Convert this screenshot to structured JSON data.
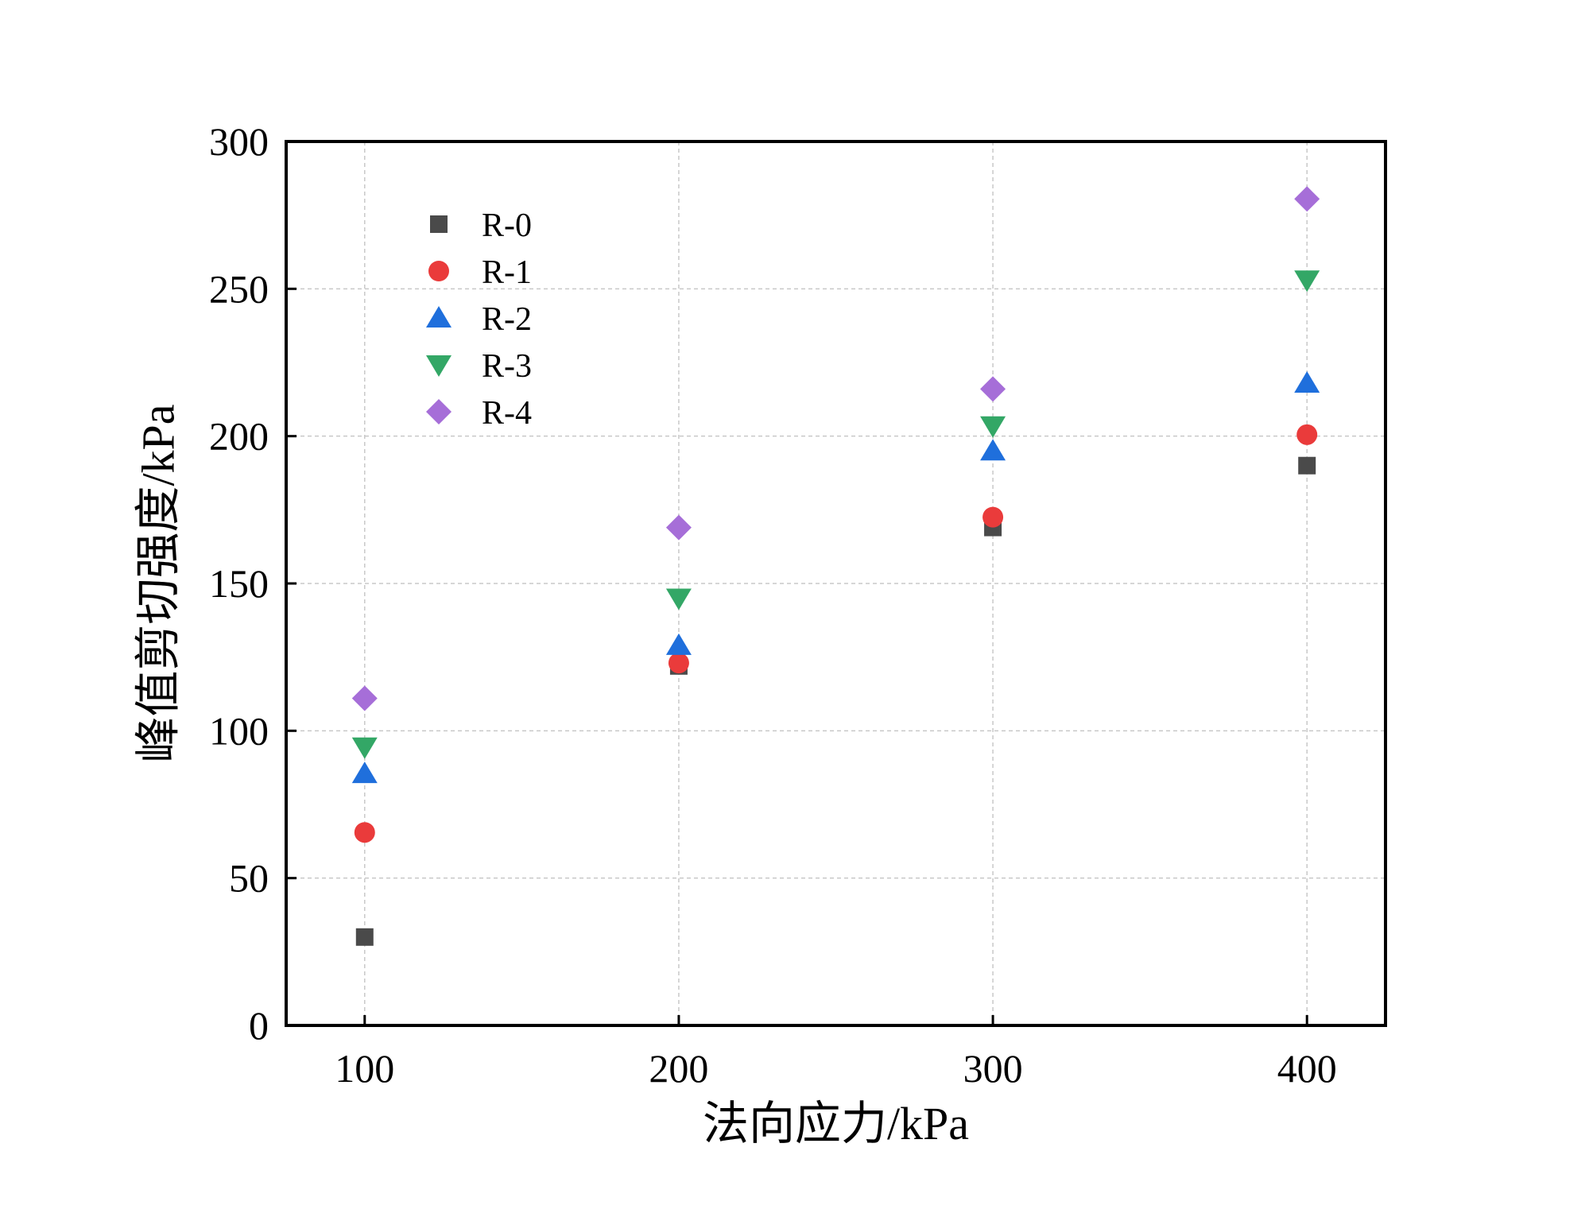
{
  "chart_data": {
    "type": "scatter",
    "title": "",
    "xlabel": "法向应力/kPa",
    "ylabel": "峰值剪切强度/kPa",
    "xlim": [
      75,
      425
    ],
    "ylim": [
      0,
      300
    ],
    "xticks": [
      100,
      200,
      300,
      400
    ],
    "yticks": [
      0,
      50,
      100,
      150,
      200,
      250,
      300
    ],
    "grid": true,
    "legend_position": "top-left",
    "x": [
      100,
      200,
      300,
      400
    ],
    "series": [
      {
        "name": "R-0",
        "marker": "square",
        "color": "#4a4a4a",
        "values": [
          30,
          122,
          169,
          190
        ]
      },
      {
        "name": "R-1",
        "marker": "circle",
        "color": "#ea3b3b",
        "values": [
          65.5,
          123,
          172.5,
          200.5
        ]
      },
      {
        "name": "R-2",
        "marker": "triangle-up",
        "color": "#1f6fdc",
        "values": [
          85.5,
          129,
          195,
          218
        ]
      },
      {
        "name": "R-3",
        "marker": "triangle-down",
        "color": "#33a766",
        "values": [
          94.5,
          145,
          203.5,
          253
        ]
      },
      {
        "name": "R-4",
        "marker": "diamond",
        "color": "#a66ed8",
        "values": [
          111,
          169,
          216,
          280.5
        ]
      }
    ]
  }
}
